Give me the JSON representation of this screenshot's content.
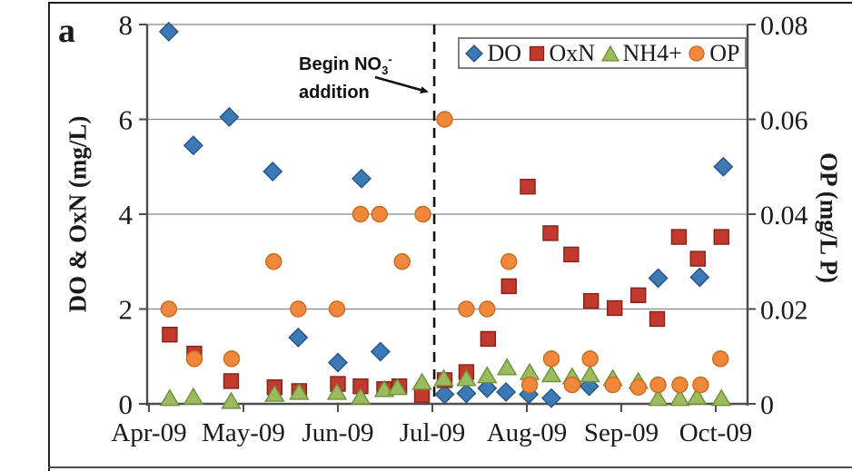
{
  "panel": {
    "label": "a"
  },
  "legend": {
    "items": [
      {
        "label": "DO",
        "marker": "diamond",
        "color": "#3C79B7",
        "edge": "#28547F"
      },
      {
        "label": "OxN",
        "marker": "square",
        "color": "#C4392D",
        "edge": "#7F241B"
      },
      {
        "label": "NH4+",
        "marker": "triangle",
        "color": "#9CBB5F",
        "edge": "#6E8F3B"
      },
      {
        "label": "OP",
        "marker": "circle",
        "color": "#F0883B",
        "edge": "#C96A21"
      }
    ]
  },
  "annotation": {
    "prefix": "Begin NO",
    "sub": "3",
    "sup": "-",
    "line2": "addition"
  },
  "colors": {
    "grid": "#878787",
    "axis": "#4D4D4D",
    "dashed_line": "#111111",
    "text": "#1a1a1a"
  },
  "chart_data": {
    "type": "scatter",
    "title": "",
    "x_axis": {
      "labels": [
        "Apr-09",
        "May-09",
        "Jun-09",
        "Jul-09",
        "Aug-09",
        "Sep-09",
        "Oct-09"
      ],
      "unit": "x values are months after Apr-09",
      "range": [
        -0.02,
        6.34
      ]
    },
    "y_left": {
      "title": "DO & OxN (mg/L)",
      "range": [
        0,
        8
      ],
      "ticks": [
        0,
        2,
        4,
        6,
        8
      ],
      "tick_labels": [
        "0",
        "2",
        "4",
        "6",
        "8"
      ]
    },
    "y_right": {
      "title": "OP (mg/L P)",
      "range": [
        0,
        0.08
      ],
      "ticks": [
        0,
        0.02,
        0.04,
        0.06,
        0.08
      ],
      "tick_labels": [
        "0",
        "0.02",
        "0.04",
        "0.06",
        "0.08"
      ]
    },
    "grid": true,
    "legend_position": "top-right",
    "vline": {
      "x": 3.02,
      "style": "dashed",
      "label": "Begin NO3- addition"
    },
    "series": [
      {
        "name": "DO",
        "axis": "left",
        "marker": "diamond",
        "color": "#3C79B7",
        "edge": "#28547F",
        "points": [
          [
            0.21,
            7.85
          ],
          [
            0.47,
            5.45
          ],
          [
            0.85,
            6.05
          ],
          [
            1.31,
            4.9
          ],
          [
            1.58,
            1.4
          ],
          [
            2.0,
            0.87
          ],
          [
            2.25,
            4.75
          ],
          [
            2.45,
            1.1
          ],
          [
            3.13,
            0.2
          ],
          [
            3.36,
            0.22
          ],
          [
            3.58,
            0.33
          ],
          [
            3.78,
            0.25
          ],
          [
            4.02,
            0.2
          ],
          [
            4.26,
            0.12
          ],
          [
            4.66,
            0.37
          ],
          [
            5.39,
            2.65
          ],
          [
            5.83,
            2.67
          ],
          [
            6.08,
            5.0
          ]
        ]
      },
      {
        "name": "OxN",
        "axis": "left",
        "marker": "square",
        "color": "#C4392D",
        "edge": "#7F241B",
        "points": [
          [
            0.22,
            1.46
          ],
          [
            0.48,
            1.06
          ],
          [
            0.87,
            0.48
          ],
          [
            1.33,
            0.35
          ],
          [
            1.59,
            0.27
          ],
          [
            2.0,
            0.42
          ],
          [
            2.24,
            0.37
          ],
          [
            2.49,
            0.31
          ],
          [
            2.65,
            0.37
          ],
          [
            2.89,
            0.19
          ],
          [
            3.13,
            0.5
          ],
          [
            3.36,
            0.67
          ],
          [
            3.59,
            1.37
          ],
          [
            3.81,
            2.48
          ],
          [
            4.01,
            4.58
          ],
          [
            4.25,
            3.6
          ],
          [
            4.47,
            3.15
          ],
          [
            4.68,
            2.17
          ],
          [
            4.93,
            2.02
          ],
          [
            5.18,
            2.29
          ],
          [
            5.38,
            1.79
          ],
          [
            5.61,
            3.52
          ],
          [
            5.81,
            3.06
          ],
          [
            6.06,
            3.52
          ]
        ]
      },
      {
        "name": "NH4+",
        "axis": "left",
        "marker": "triangle",
        "color": "#9CBB5F",
        "edge": "#6E8F3B",
        "points": [
          [
            0.22,
            0.12
          ],
          [
            0.47,
            0.15
          ],
          [
            0.87,
            0.06
          ],
          [
            1.33,
            0.21
          ],
          [
            1.59,
            0.25
          ],
          [
            1.99,
            0.25
          ],
          [
            2.24,
            0.15
          ],
          [
            2.49,
            0.31
          ],
          [
            2.63,
            0.35
          ],
          [
            2.89,
            0.46
          ],
          [
            3.12,
            0.54
          ],
          [
            3.36,
            0.54
          ],
          [
            3.58,
            0.6
          ],
          [
            3.79,
            0.77
          ],
          [
            4.03,
            0.67
          ],
          [
            4.26,
            0.62
          ],
          [
            4.48,
            0.58
          ],
          [
            4.67,
            0.62
          ],
          [
            4.91,
            0.54
          ],
          [
            5.18,
            0.48
          ],
          [
            5.39,
            0.12
          ],
          [
            5.62,
            0.12
          ],
          [
            5.8,
            0.15
          ],
          [
            6.06,
            0.12
          ]
        ]
      },
      {
        "name": "OP",
        "axis": "right",
        "marker": "circle",
        "color": "#F0883B",
        "edge": "#C96A21",
        "points": [
          [
            0.21,
            0.02
          ],
          [
            0.48,
            0.0095
          ],
          [
            0.875,
            0.0095
          ],
          [
            1.32,
            0.03
          ],
          [
            1.58,
            0.02
          ],
          [
            1.99,
            0.02
          ],
          [
            2.24,
            0.04
          ],
          [
            2.44,
            0.04
          ],
          [
            2.68,
            0.03
          ],
          [
            2.9,
            0.04
          ],
          [
            3.13,
            0.06
          ],
          [
            3.36,
            0.02
          ],
          [
            3.58,
            0.02
          ],
          [
            3.81,
            0.03
          ],
          [
            4.03,
            0.004
          ],
          [
            4.26,
            0.0095
          ],
          [
            4.48,
            0.004
          ],
          [
            4.67,
            0.0095
          ],
          [
            4.91,
            0.004
          ],
          [
            5.18,
            0.0035
          ],
          [
            5.39,
            0.004
          ],
          [
            5.62,
            0.004
          ],
          [
            5.84,
            0.004
          ],
          [
            6.05,
            0.0095
          ]
        ]
      }
    ]
  }
}
